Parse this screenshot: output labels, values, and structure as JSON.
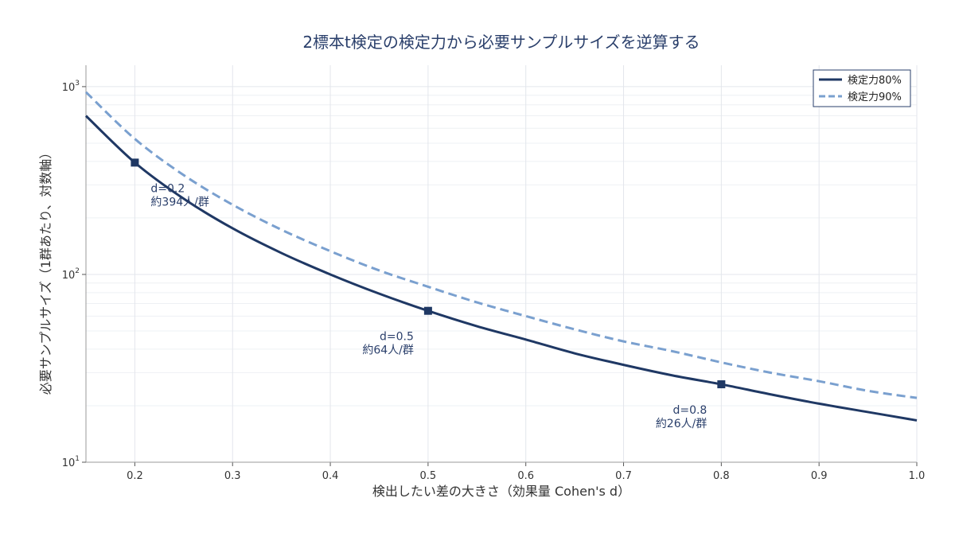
{
  "chart_data": {
    "type": "line",
    "title": "2標本t検定の検定力から必要サンプルサイズを逆算する",
    "xlabel": "検出したい差の大きさ（効果量 Cohen's d）",
    "ylabel": "必要サンプルサイズ（1群あたり、対数軸）",
    "xlim": [
      0.15,
      1.0
    ],
    "ylim": [
      10,
      1300
    ],
    "yscale": "log",
    "grid": true,
    "legend_position": "top-right",
    "x_ticks": [
      "0.2",
      "0.3",
      "0.4",
      "0.5",
      "0.6",
      "0.7",
      "0.8",
      "0.9",
      "1.0"
    ],
    "y_ticks": [
      {
        "value": 10,
        "base": "10",
        "exp": "1"
      },
      {
        "value": 100,
        "base": "10",
        "exp": "2"
      },
      {
        "value": 1000,
        "base": "10",
        "exp": "3"
      }
    ],
    "series": [
      {
        "name": "検定力80%",
        "color": "#1f3864",
        "dash": "solid",
        "x": [
          0.15,
          0.2,
          0.25,
          0.3,
          0.35,
          0.4,
          0.45,
          0.5,
          0.55,
          0.6,
          0.65,
          0.7,
          0.75,
          0.8,
          0.85,
          0.9,
          0.95,
          1.0
        ],
        "values": [
          699,
          394,
          253,
          176,
          130,
          100,
          79,
          64,
          53,
          45,
          38,
          33,
          29,
          26,
          23,
          20.5,
          18.5,
          16.7
        ]
      },
      {
        "name": "検定力90%",
        "color": "#7aa0cf",
        "dash": "dashed",
        "x": [
          0.15,
          0.2,
          0.25,
          0.3,
          0.35,
          0.4,
          0.45,
          0.5,
          0.55,
          0.6,
          0.65,
          0.7,
          0.75,
          0.8,
          0.85,
          0.9,
          0.95,
          1.0
        ],
        "values": [
          935,
          527,
          338,
          235,
          173,
          133,
          105,
          86,
          71,
          60,
          51,
          44,
          39,
          34,
          30,
          27,
          24,
          22
        ]
      }
    ],
    "markers": [
      {
        "x": 0.2,
        "y": 394,
        "line1": "d=0.2",
        "line2": "約394人/群",
        "align": "left"
      },
      {
        "x": 0.5,
        "y": 64,
        "line1": "d=0.5",
        "line2": "約64人/群",
        "align": "right"
      },
      {
        "x": 0.8,
        "y": 26,
        "line1": "d=0.8",
        "line2": "約26人/群",
        "align": "right"
      }
    ]
  }
}
